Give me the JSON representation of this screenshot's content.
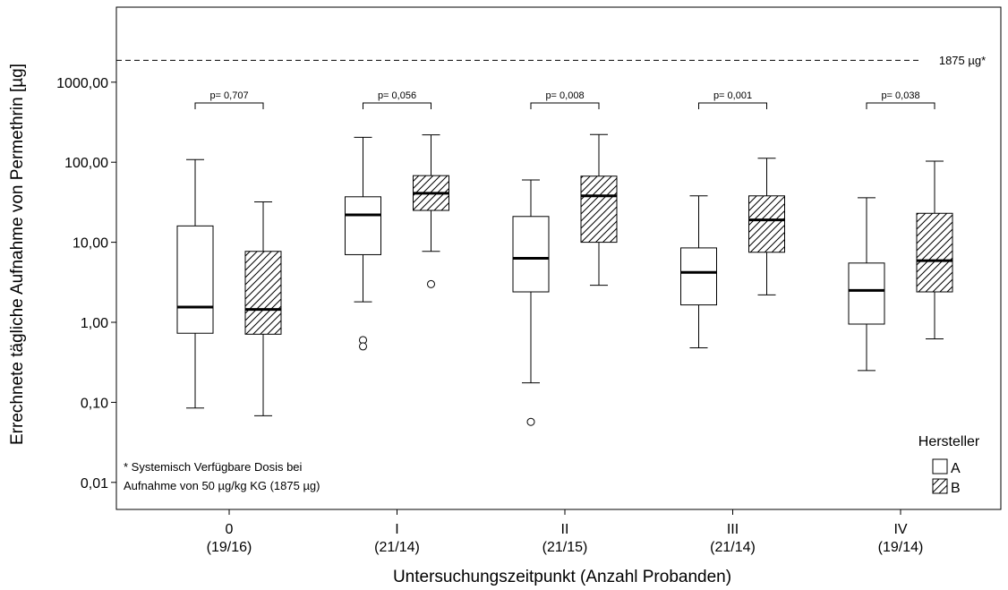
{
  "chart_data": {
    "type": "boxplot",
    "ylabel": "Errechnete tägliche Aufnahme von Permethrin [µg]",
    "xlabel": "Untersuchungszeitpunkt (Anzahl Probanden)",
    "yscale": "log",
    "ylim": [
      0.005,
      8000
    ],
    "yticks": [
      0.01,
      0.1,
      1,
      10,
      100,
      1000
    ],
    "ytick_labels": [
      "0,01",
      "0,10",
      "1,00",
      "10,00",
      "100,00",
      "1000,00"
    ],
    "categories": [
      {
        "label": "0",
        "n": "(19/16)"
      },
      {
        "label": "I",
        "n": "(21/14)"
      },
      {
        "label": "II",
        "n": "(21/15)"
      },
      {
        "label": "III",
        "n": "(21/14)"
      },
      {
        "label": "IV",
        "n": "(19/14)"
      }
    ],
    "legend_title": "Hersteller",
    "legend_position": "bottom-right",
    "series": [
      {
        "name": "A",
        "pattern": "none",
        "boxes": [
          {
            "whisker_low": 0.085,
            "q1": 0.73,
            "median": 1.55,
            "q3": 16,
            "whisker_high": 108,
            "outliers": []
          },
          {
            "whisker_low": 1.8,
            "q1": 7,
            "median": 22,
            "q3": 37,
            "whisker_high": 205,
            "outliers": [
              0.6,
              0.5
            ]
          },
          {
            "whisker_low": 0.175,
            "q1": 2.4,
            "median": 6.3,
            "q3": 21,
            "whisker_high": 60,
            "outliers": [
              0.057
            ]
          },
          {
            "whisker_low": 0.48,
            "q1": 1.65,
            "median": 4.2,
            "q3": 8.5,
            "whisker_high": 38,
            "outliers": []
          },
          {
            "whisker_low": 0.25,
            "q1": 0.95,
            "median": 2.5,
            "q3": 5.5,
            "whisker_high": 36,
            "outliers": []
          }
        ]
      },
      {
        "name": "B",
        "pattern": "hatched",
        "boxes": [
          {
            "whisker_low": 0.068,
            "q1": 0.71,
            "median": 1.45,
            "q3": 7.7,
            "whisker_high": 32,
            "outliers": []
          },
          {
            "whisker_low": 7.7,
            "q1": 25,
            "median": 41,
            "q3": 68,
            "whisker_high": 220,
            "outliers": [
              3.0
            ]
          },
          {
            "whisker_low": 2.9,
            "q1": 10,
            "median": 38,
            "q3": 67,
            "whisker_high": 222,
            "outliers": []
          },
          {
            "whisker_low": 2.2,
            "q1": 7.5,
            "median": 19,
            "q3": 38,
            "whisker_high": 112,
            "outliers": []
          },
          {
            "whisker_low": 0.62,
            "q1": 2.4,
            "median": 5.9,
            "q3": 23,
            "whisker_high": 103,
            "outliers": []
          }
        ]
      }
    ],
    "p_values": [
      "p= 0,707",
      "p= 0,056",
      "p= 0,008",
      "p= 0,001",
      "p= 0,038"
    ],
    "reference_line": {
      "value": 1875,
      "label": "1875 µg*",
      "style": "dashed"
    },
    "annotation": [
      "* Systemisch Verfügbare Dosis bei",
      "Aufnahme von 50 µg/kg KG (1875 µg)"
    ]
  }
}
